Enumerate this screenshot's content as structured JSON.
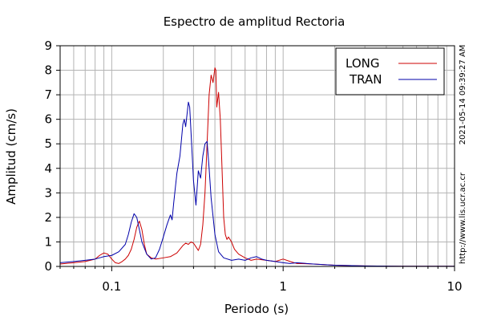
{
  "chart_data": {
    "type": "line",
    "title": "Espectro de amplitud Rectoria",
    "xlabel": "Periodo (s)",
    "ylabel": "Amplitud (cm/s)",
    "x_scale": "log",
    "xlim": [
      0.05,
      10
    ],
    "ylim": [
      0,
      9
    ],
    "grid": true,
    "legend_position": "top-right",
    "x_ticks": [
      {
        "value": 0.1,
        "label": "0.1"
      },
      {
        "value": 1,
        "label": "1"
      },
      {
        "value": 10,
        "label": "10"
      }
    ],
    "y_ticks": [
      {
        "value": 0,
        "label": "0"
      },
      {
        "value": 1,
        "label": "1"
      },
      {
        "value": 2,
        "label": "2"
      },
      {
        "value": 3,
        "label": "3"
      },
      {
        "value": 4,
        "label": "4"
      },
      {
        "value": 5,
        "label": "5"
      },
      {
        "value": 6,
        "label": "6"
      },
      {
        "value": 7,
        "label": "7"
      },
      {
        "value": 8,
        "label": "8"
      },
      {
        "value": 9,
        "label": "9"
      }
    ],
    "series": [
      {
        "name": "LONG",
        "color": "#cc0000",
        "x": [
          0.05,
          0.06,
          0.07,
          0.08,
          0.085,
          0.09,
          0.095,
          0.1,
          0.105,
          0.11,
          0.115,
          0.12,
          0.125,
          0.13,
          0.135,
          0.14,
          0.145,
          0.15,
          0.155,
          0.16,
          0.17,
          0.18,
          0.2,
          0.22,
          0.24,
          0.25,
          0.26,
          0.27,
          0.28,
          0.29,
          0.3,
          0.31,
          0.32,
          0.33,
          0.34,
          0.35,
          0.36,
          0.37,
          0.38,
          0.39,
          0.4,
          0.405,
          0.41,
          0.42,
          0.43,
          0.44,
          0.45,
          0.46,
          0.47,
          0.48,
          0.5,
          0.52,
          0.55,
          0.6,
          0.65,
          0.7,
          0.8,
          0.9,
          1,
          1.1,
          1.2,
          1.5,
          2,
          3,
          5,
          10
        ],
        "values": [
          0.1,
          0.15,
          0.2,
          0.3,
          0.45,
          0.55,
          0.5,
          0.3,
          0.15,
          0.12,
          0.2,
          0.3,
          0.45,
          0.7,
          1.1,
          1.6,
          1.85,
          1.5,
          0.9,
          0.5,
          0.35,
          0.3,
          0.35,
          0.4,
          0.55,
          0.7,
          0.85,
          0.95,
          0.9,
          1.0,
          0.95,
          0.8,
          0.65,
          0.9,
          1.7,
          3.0,
          5.0,
          7.0,
          7.8,
          7.5,
          8.1,
          8.0,
          6.5,
          7.1,
          6.0,
          4.0,
          2.0,
          1.3,
          1.1,
          1.2,
          1.0,
          0.7,
          0.5,
          0.35,
          0.25,
          0.3,
          0.25,
          0.2,
          0.3,
          0.2,
          0.12,
          0.1,
          0.05,
          0.02,
          0.01,
          0.01
        ]
      },
      {
        "name": "TRAN",
        "color": "#0000aa",
        "x": [
          0.05,
          0.06,
          0.07,
          0.08,
          0.09,
          0.1,
          0.11,
          0.12,
          0.125,
          0.13,
          0.135,
          0.14,
          0.145,
          0.15,
          0.16,
          0.17,
          0.18,
          0.19,
          0.2,
          0.21,
          0.22,
          0.225,
          0.23,
          0.24,
          0.25,
          0.26,
          0.265,
          0.27,
          0.275,
          0.28,
          0.285,
          0.29,
          0.295,
          0.3,
          0.305,
          0.31,
          0.32,
          0.33,
          0.34,
          0.35,
          0.36,
          0.37,
          0.38,
          0.4,
          0.42,
          0.45,
          0.5,
          0.55,
          0.6,
          0.65,
          0.7,
          0.75,
          0.8,
          0.9,
          1,
          1.1,
          1.2,
          1.5,
          2,
          3,
          5,
          10
        ],
        "values": [
          0.15,
          0.2,
          0.25,
          0.3,
          0.4,
          0.45,
          0.6,
          0.9,
          1.3,
          1.8,
          2.15,
          2.0,
          1.5,
          1.0,
          0.5,
          0.3,
          0.35,
          0.7,
          1.2,
          1.7,
          2.1,
          1.9,
          2.6,
          3.8,
          4.5,
          5.8,
          6.0,
          5.7,
          6.2,
          6.7,
          6.5,
          5.5,
          4.5,
          3.5,
          3.0,
          2.5,
          3.9,
          3.6,
          4.5,
          5.0,
          5.1,
          4.0,
          2.8,
          1.3,
          0.6,
          0.35,
          0.25,
          0.3,
          0.25,
          0.35,
          0.4,
          0.3,
          0.25,
          0.2,
          0.15,
          0.12,
          0.15,
          0.1,
          0.05,
          0.02,
          0.01,
          0.01
        ]
      }
    ]
  },
  "side_texts": {
    "timestamp": "2021-05-14 09:39:27 AM",
    "url": "http://www.lis.ucr.ac.cr"
  }
}
